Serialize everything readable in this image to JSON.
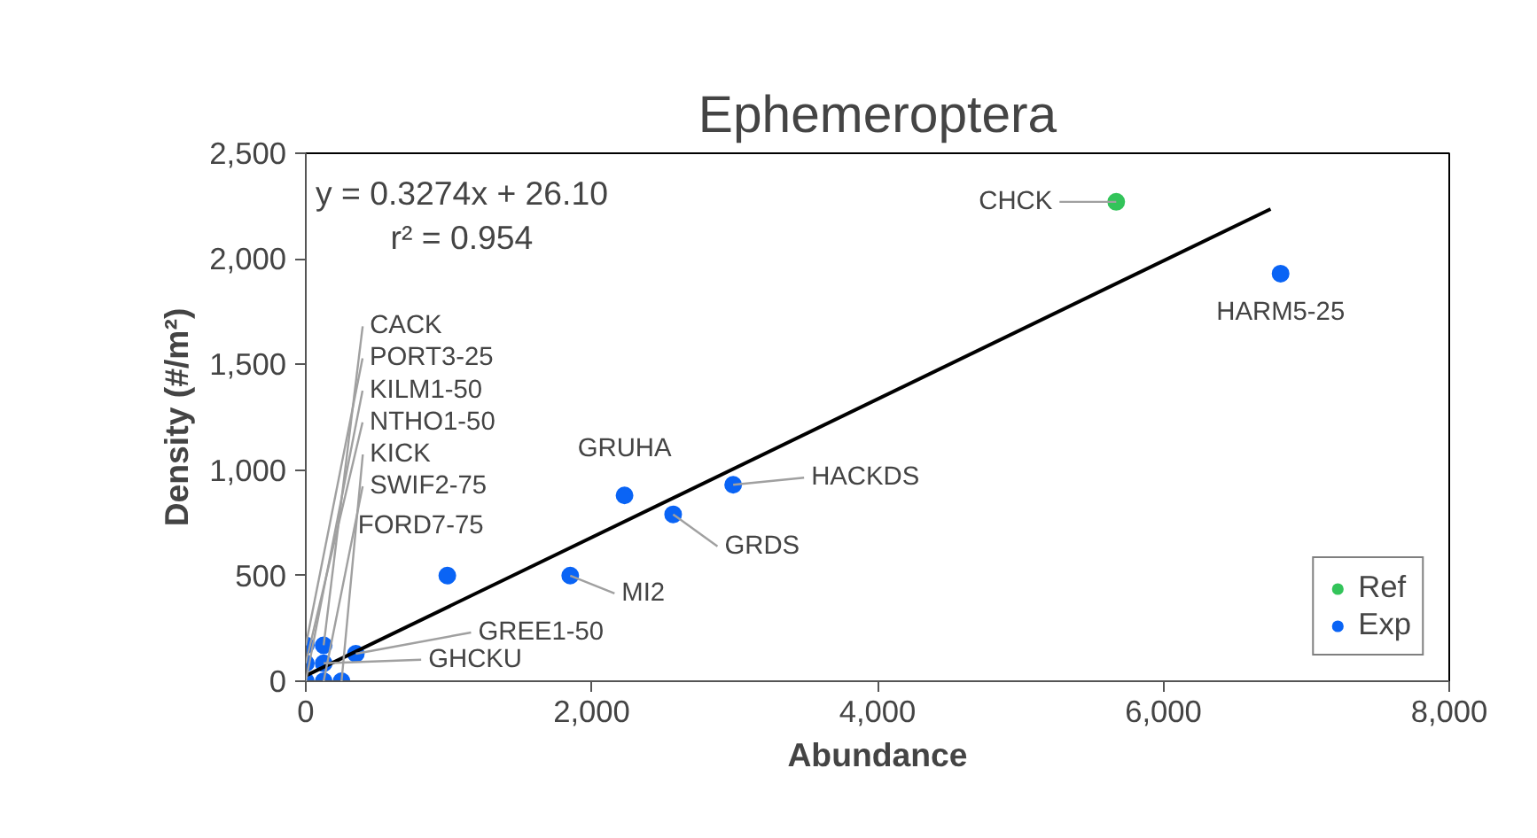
{
  "chart_data": {
    "type": "scatter",
    "title": "Ephemeroptera",
    "xlabel": "Abundance",
    "ylabel": "Density (#/m²)",
    "xlim": [
      0,
      8000
    ],
    "ylim": [
      0,
      2500
    ],
    "xticks": [
      {
        "value": 0,
        "label": "0"
      },
      {
        "value": 2000,
        "label": "2,000"
      },
      {
        "value": 4000,
        "label": "4,000"
      },
      {
        "value": 6000,
        "label": "6,000"
      },
      {
        "value": 8000,
        "label": "8,000"
      }
    ],
    "yticks": [
      {
        "value": 0,
        "label": "0"
      },
      {
        "value": 500,
        "label": "500"
      },
      {
        "value": 1000,
        "label": "1,000"
      },
      {
        "value": 1500,
        "label": "1,500"
      },
      {
        "value": 2000,
        "label": "2,000"
      },
      {
        "value": 2500,
        "label": "2,500"
      }
    ],
    "grid": false,
    "legend": "bottom right",
    "series": [
      {
        "name": "Ref",
        "color": "#33c45a",
        "marker": "circle",
        "x": [
          5670
        ],
        "values": [
          2270
        ]
      },
      {
        "name": "Exp",
        "color": "#0a64f5",
        "marker": "circle",
        "x": [
          6820,
          2990,
          2570,
          2230,
          1850,
          990,
          350,
          125,
          0,
          125,
          0,
          0,
          250,
          125
        ],
        "values": [
          1930,
          930,
          790,
          880,
          500,
          500,
          130,
          170,
          170,
          85,
          0,
          85,
          0,
          0
        ]
      },
      {
        "type": "line",
        "color": "#000000",
        "x": [
          0,
          6750
        ],
        "values": [
          26,
          2236
        ]
      }
    ],
    "annotations": [
      "y = 0.3274x + 26.10\nr² = 0.954",
      {
        "text": "CHCK",
        "x": 5670,
        "y": 2270
      },
      {
        "text": "HARM5-25",
        "x": 6820,
        "y": 1930
      },
      {
        "text": "HACKDS",
        "x": 2990,
        "y": 930
      },
      {
        "text": "GRDS",
        "x": 2570,
        "y": 790
      },
      {
        "text": "GRUHA",
        "x": 2230,
        "y": 880
      },
      {
        "text": "MI2",
        "x": 1850,
        "y": 500
      },
      {
        "text": "FORD7-75",
        "x": 990,
        "y": 500
      },
      {
        "text": "GREE1-50",
        "x": 350,
        "y": 130
      },
      {
        "text": "CACK",
        "x": 125,
        "y": 170
      },
      {
        "text": "PORT3-25",
        "x": 0,
        "y": 170
      },
      {
        "text": "GHCKU",
        "x": 125,
        "y": 85
      },
      {
        "text": "KILM1-50",
        "x": 0,
        "y": 0
      },
      {
        "text": "NTHO1-50",
        "x": 0,
        "y": 85
      },
      {
        "text": "KICK",
        "x": 250,
        "y": 0
      },
      {
        "text": "SWIF2-75",
        "x": 125,
        "y": 0
      }
    ]
  }
}
